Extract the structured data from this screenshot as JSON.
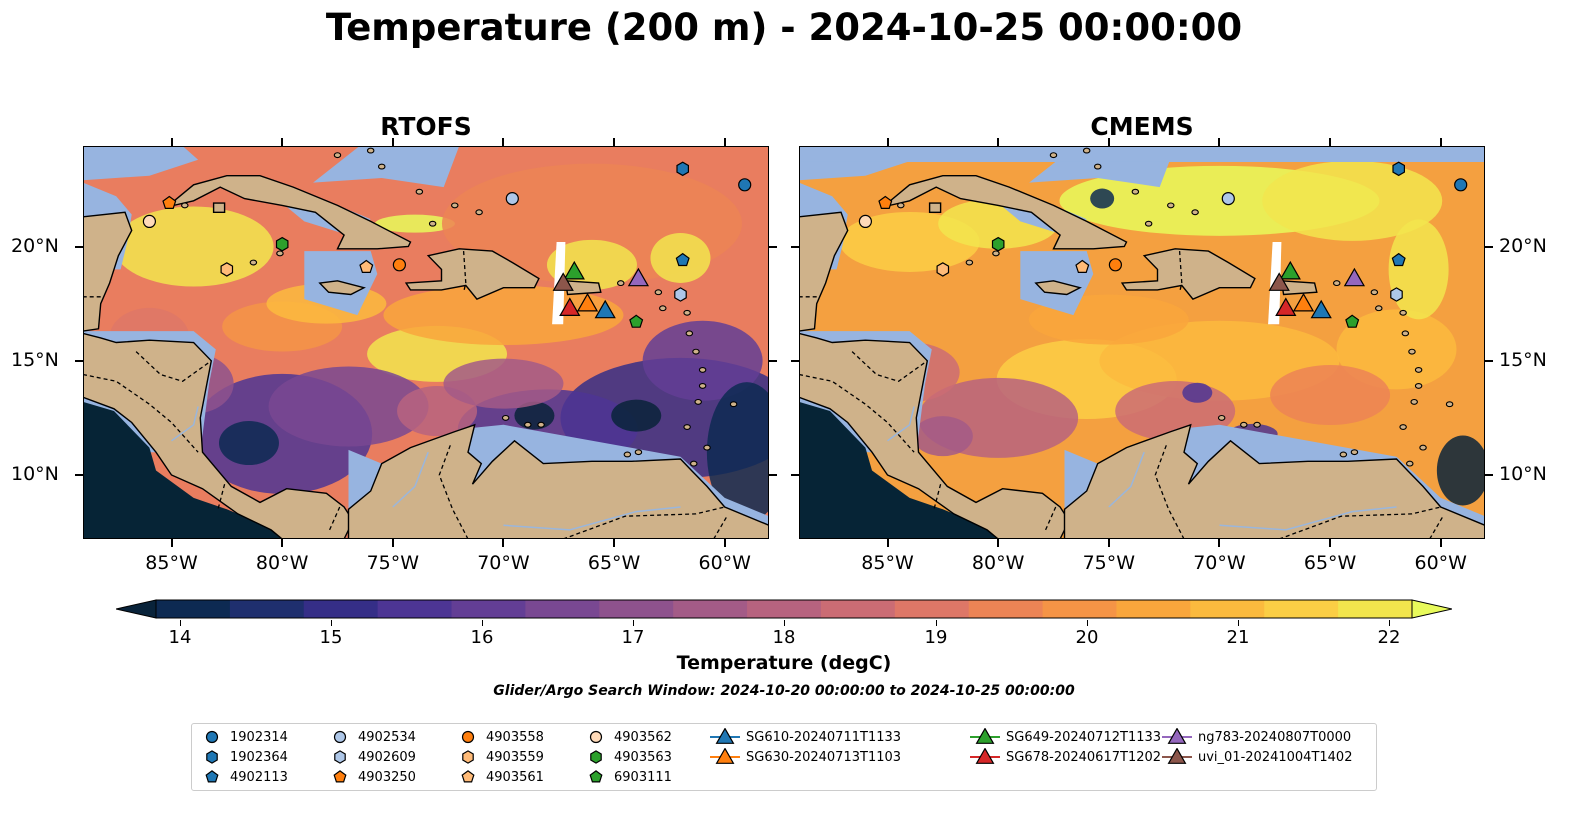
{
  "title": "Temperature (200 m) - 2024-10-25 00:00:00",
  "panels": [
    {
      "id": "rtofs",
      "title": "RTOFS"
    },
    {
      "id": "cmems",
      "title": "CMEMS"
    }
  ],
  "axes": {
    "lat_ticks": [
      "10°N",
      "15°N",
      "20°N"
    ],
    "lon_ticks": [
      "85°W",
      "80°W",
      "75°W",
      "70°W",
      "65°W",
      "60°W"
    ]
  },
  "colorbar": {
    "label": "Temperature (degC)",
    "ticks": [
      "14",
      "15",
      "16",
      "17",
      "18",
      "19",
      "20",
      "21",
      "22"
    ],
    "range": [
      14,
      22
    ],
    "colors": [
      "#09233a",
      "#0d2a52",
      "#1f2f6e",
      "#352e87",
      "#4d3594",
      "#633e95",
      "#794892",
      "#8e528d",
      "#a35b87",
      "#b7637f",
      "#cb6c74",
      "#de7767",
      "#ec8455",
      "#f59446",
      "#f9a63c",
      "#fbba3e",
      "#fbce45",
      "#f2e54d",
      "#e8fa5b"
    ]
  },
  "search_window": "Glider/Argo Search Window: 2024-10-20 00:00:00 to 2024-10-25 00:00:00",
  "map_colors": {
    "land": "#cfb28a",
    "shelf": "#97b4e0",
    "deep_land_mask": "#062436",
    "border": "#000000",
    "river": "#9ab6dc"
  },
  "legend": [
    {
      "label": "1902314",
      "marker": "circle",
      "color": "#1f77b4"
    },
    {
      "label": "1902364",
      "marker": "hexagon",
      "color": "#1f77b4"
    },
    {
      "label": "4902113",
      "marker": "pentagon",
      "color": "#1f77b4"
    },
    {
      "label": "4902534",
      "marker": "circle",
      "color": "#aec7e8"
    },
    {
      "label": "4902609",
      "marker": "hexagon",
      "color": "#aec7e8"
    },
    {
      "label": "4903250",
      "marker": "pentagon",
      "color": "#ff7f0e"
    },
    {
      "label": "4903558",
      "marker": "circle",
      "color": "#ff7f0e"
    },
    {
      "label": "4903559",
      "marker": "hexagon",
      "color": "#ffbb78"
    },
    {
      "label": "4903561",
      "marker": "pentagon",
      "color": "#ffbb78"
    },
    {
      "label": "4903562",
      "marker": "circle",
      "color": "#ffdab9"
    },
    {
      "label": "4903563",
      "marker": "hexagon",
      "color": "#2ca02c"
    },
    {
      "label": "6903111",
      "marker": "pentagon",
      "color": "#2ca02c"
    },
    {
      "label": "SG610-20240711T1133",
      "marker": "triangle",
      "color": "#1f77b4"
    },
    {
      "label": "SG630-20240713T1103",
      "marker": "triangle",
      "color": "#ff7f0e"
    },
    {
      "label": "SG649-20240712T1133",
      "marker": "triangle",
      "color": "#2ca02c"
    },
    {
      "label": "SG678-20240617T1202",
      "marker": "triangle",
      "color": "#d62728"
    },
    {
      "label": "ng783-20240807T0000",
      "marker": "triangle",
      "color": "#9467bd"
    },
    {
      "label": "uvi_01-20241004T1402",
      "marker": "triangle",
      "color": "#8c564b"
    }
  ],
  "markers": [
    {
      "id": "1902314",
      "lon": -59.1,
      "lat": 22.7
    },
    {
      "id": "1902364",
      "lon": -61.9,
      "lat": 23.4
    },
    {
      "id": "4902113",
      "lon": -61.9,
      "lat": 19.4
    },
    {
      "id": "4902534",
      "lon": -69.6,
      "lat": 22.1
    },
    {
      "id": "4902609",
      "lon": -62.0,
      "lat": 17.9
    },
    {
      "id": "4903250",
      "lon": -85.1,
      "lat": 21.9
    },
    {
      "id": "4903558",
      "lon": -74.7,
      "lat": 19.2
    },
    {
      "id": "4903559",
      "lon": -82.5,
      "lat": 19.0
    },
    {
      "id": "4903561",
      "lon": -76.2,
      "lat": 19.1
    },
    {
      "id": "4903562",
      "lon": -86.0,
      "lat": 21.1
    },
    {
      "id": "4903563",
      "lon": -80.0,
      "lat": 20.1
    },
    {
      "id": "6903111",
      "lon": -64.0,
      "lat": 16.7
    },
    {
      "id": "SG610-20240711T1133",
      "lon": -65.4,
      "lat": 17.2
    },
    {
      "id": "SG630-20240713T1103",
      "lon": -66.2,
      "lat": 17.5
    },
    {
      "id": "SG649-20240712T1133",
      "lon": -66.8,
      "lat": 18.9
    },
    {
      "id": "SG678-20240617T1202",
      "lon": -67.0,
      "lat": 17.3
    },
    {
      "id": "ng783-20240807T0000",
      "lon": -63.9,
      "lat": 18.6
    },
    {
      "id": "uvi_01-20241004T1402",
      "lon": -67.3,
      "lat": 18.4
    }
  ]
}
